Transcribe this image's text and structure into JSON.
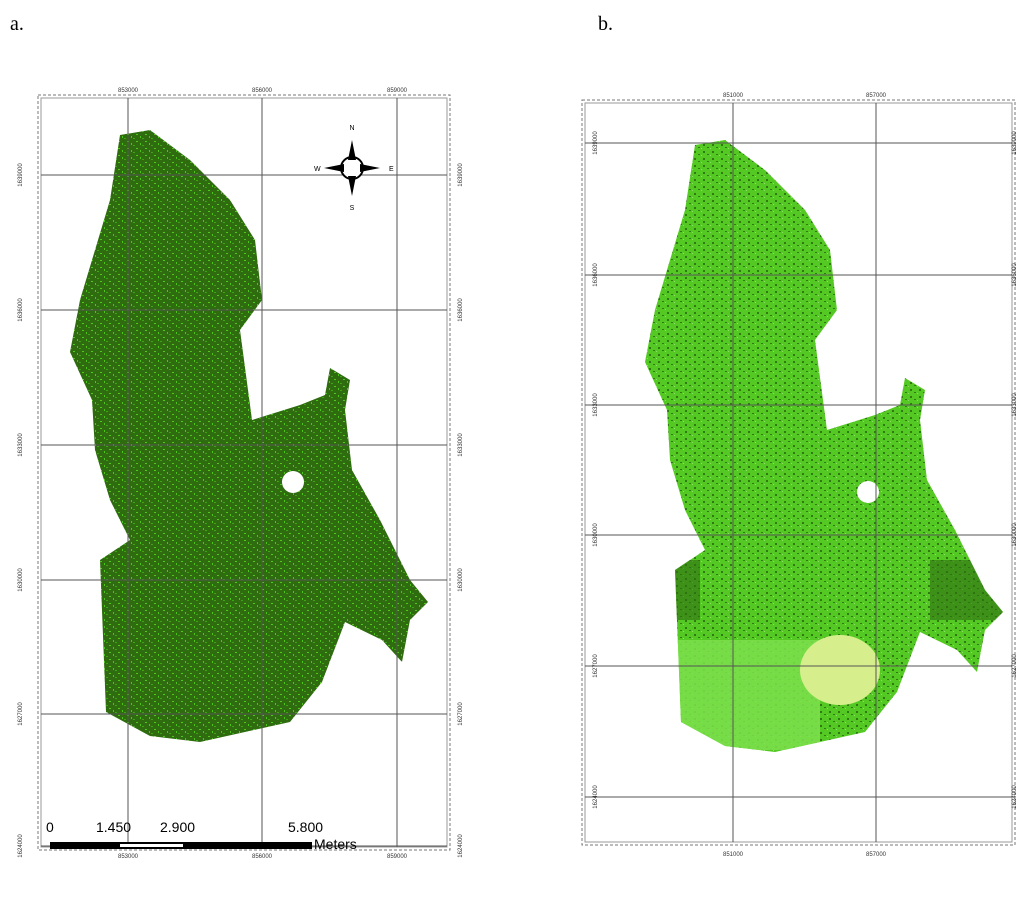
{
  "panels": [
    {
      "label": "a.",
      "top_ticks": [
        "853000",
        "856000",
        "859000"
      ],
      "bottom_ticks": [
        "853000",
        "856000",
        "859000"
      ],
      "left_ticks": [
        "1639000",
        "1636000",
        "1633000",
        "1630000",
        "1627000",
        "1624000"
      ],
      "right_ticks": [
        "1639000",
        "1636000",
        "1633000",
        "1630000",
        "1627000",
        "1624000"
      ],
      "compass": {
        "n": "N",
        "s": "S",
        "e": "E",
        "w": "W"
      },
      "scale_bar": {
        "labels": [
          "0",
          "1.450",
          "2.900",
          "5.800"
        ],
        "unit": "Meters"
      }
    },
    {
      "label": "b.",
      "top_ticks": [
        "851000",
        "857000"
      ],
      "bottom_ticks": [
        "851000",
        "857000"
      ],
      "left_ticks": [
        "1639000",
        "1636000",
        "1633000",
        "1630000",
        "1627000",
        "1624000"
      ],
      "right_ticks": [
        "1639000",
        "1636000",
        "1633000",
        "1630000",
        "1627000",
        "1624000"
      ]
    }
  ]
}
